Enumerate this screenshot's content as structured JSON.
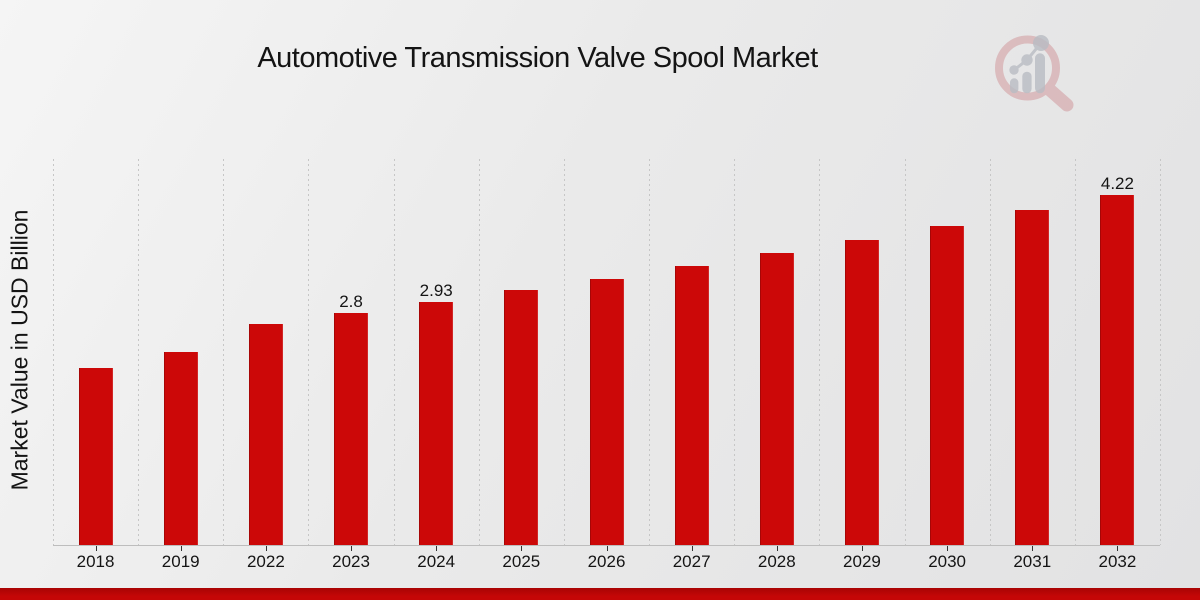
{
  "header": {
    "title": "Automotive Transmission Valve Spool Market"
  },
  "axis": {
    "y_label": "Market Value in USD Billion"
  },
  "chart_data": {
    "type": "bar",
    "title": "Automotive Transmission Valve Spool Market",
    "xlabel": "",
    "ylabel": "Market Value in USD Billion",
    "categories": [
      "2018",
      "2019",
      "2022",
      "2023",
      "2024",
      "2025",
      "2026",
      "2027",
      "2028",
      "2029",
      "2030",
      "2031",
      "2032"
    ],
    "values": [
      2.13,
      2.33,
      2.66,
      2.8,
      2.93,
      3.07,
      3.21,
      3.36,
      3.52,
      3.67,
      3.84,
      4.03,
      4.22
    ],
    "value_labels": [
      "",
      "",
      "",
      "2.8",
      "2.93",
      "",
      "",
      "",
      "",
      "",
      "",
      "",
      "4.22"
    ],
    "ylim": [
      0,
      4.65
    ],
    "unit": "USD Billion",
    "grid": "vertical-dashed",
    "legend": "none",
    "bar_color": "#cc0808"
  },
  "branding": {
    "logo": "market-research-magnifier-bar-chart-logo"
  },
  "colors": {
    "bar": "#cc0808",
    "banner_top": "#a90404",
    "banner_bottom": "#c50606",
    "grid_line": "#c6c6c6",
    "axis_line": "#bdbdbd",
    "tick": "#333333",
    "text": "#141414",
    "bg_start": "#f5f5f5",
    "bg_mid": "#eaeaea",
    "bg_end": "#e2e2e3",
    "logo_pink": "#cf9296",
    "logo_gray": "#b9bcc3"
  }
}
